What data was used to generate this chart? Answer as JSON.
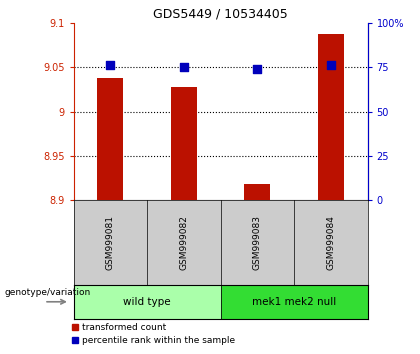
{
  "title": "GDS5449 / 10534405",
  "samples": [
    "GSM999081",
    "GSM999082",
    "GSM999083",
    "GSM999084"
  ],
  "red_values": [
    9.038,
    9.028,
    8.918,
    9.088
  ],
  "blue_values": [
    76,
    75,
    74,
    76
  ],
  "ylim_left": [
    8.9,
    9.1
  ],
  "ylim_right": [
    0,
    100
  ],
  "yticks_left": [
    8.9,
    8.95,
    9.0,
    9.05,
    9.1
  ],
  "yticks_right": [
    0,
    25,
    50,
    75,
    100
  ],
  "ytick_labels_left": [
    "8.9",
    "8.95",
    "9",
    "9.05",
    "9.1"
  ],
  "ytick_labels_right": [
    "0",
    "25",
    "50",
    "75",
    "100%"
  ],
  "hlines": [
    8.95,
    9.0,
    9.05
  ],
  "bar_width": 0.35,
  "bar_color": "#bb1100",
  "dot_color": "#0000bb",
  "dot_size": 30,
  "group1_samples": [
    0,
    1
  ],
  "group2_samples": [
    2,
    3
  ],
  "group1_label": "wild type",
  "group2_label": "mek1 mek2 null",
  "group1_color": "#aaffaa",
  "group2_color": "#33dd33",
  "genotype_label": "genotype/variation",
  "legend_red": "transformed count",
  "legend_blue": "percentile rank within the sample",
  "background_color": "#ffffff",
  "plot_bg": "#ffffff",
  "sample_bg": "#cccccc",
  "left_tick_color": "#cc2200",
  "right_tick_color": "#0000cc",
  "title_fontsize": 9
}
